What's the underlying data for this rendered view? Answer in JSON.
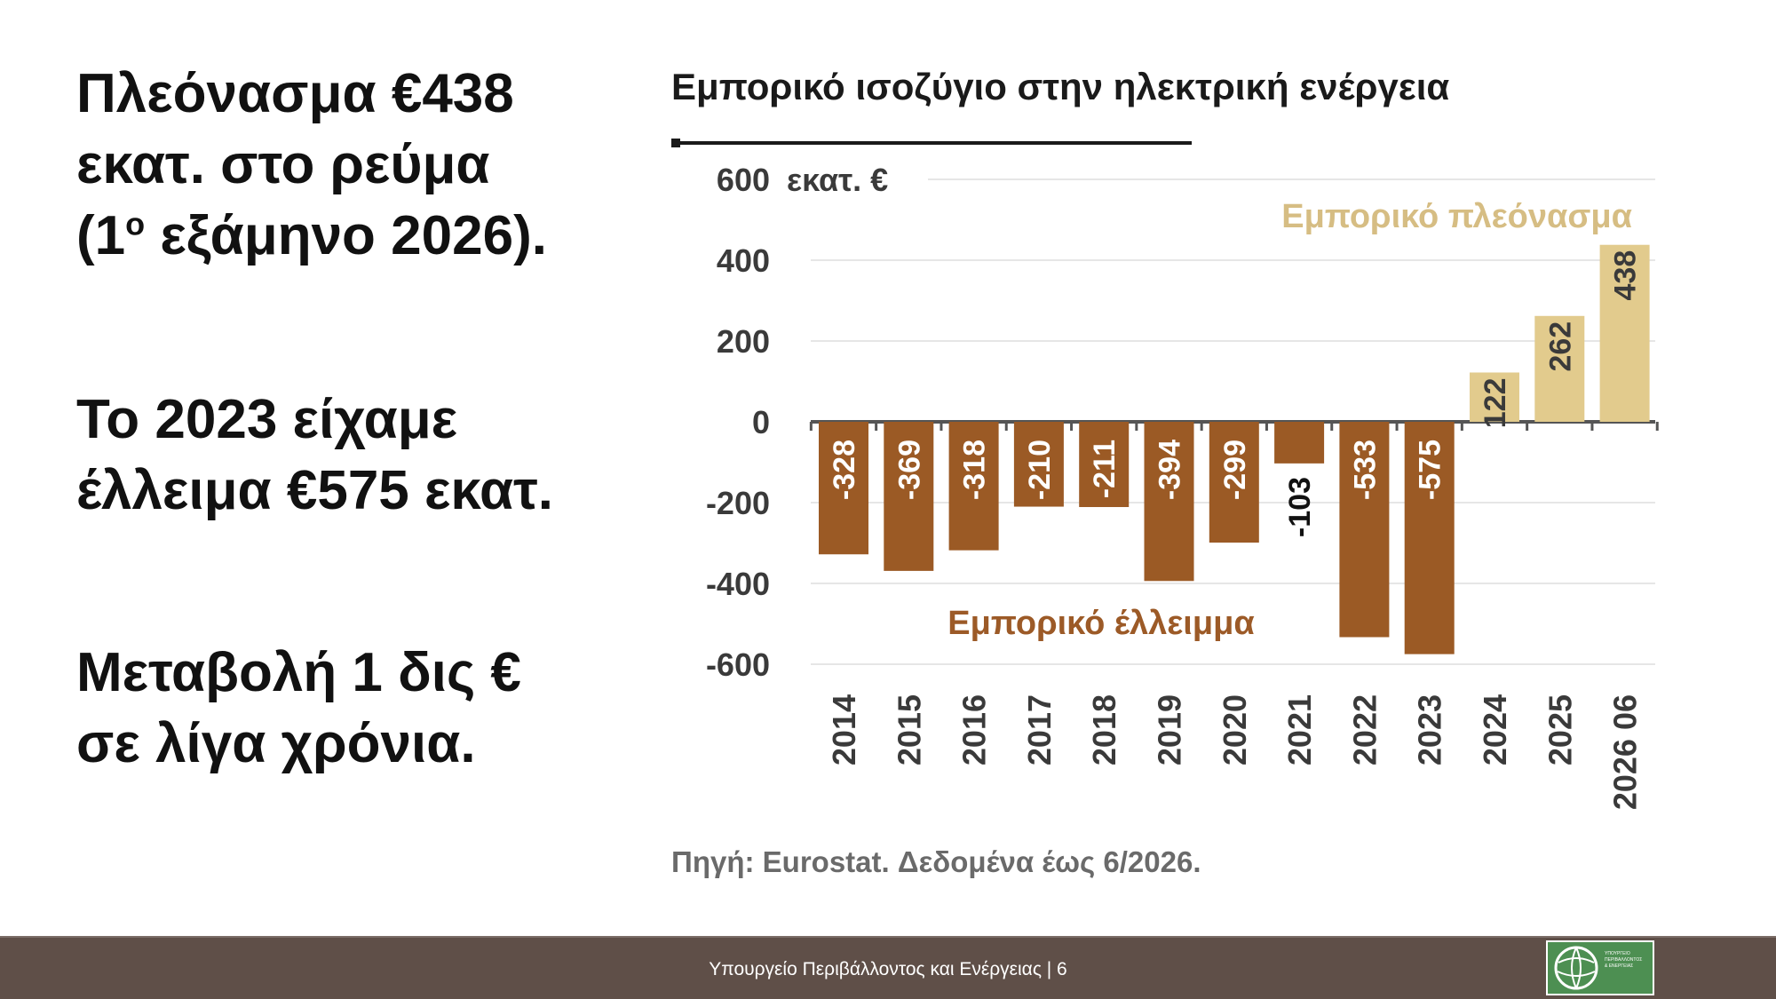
{
  "headline": {
    "block1_part1": "Πλεόνασμα €438",
    "block1_part2": "εκατ. στο ρεύμα",
    "block1_part3a": "(1",
    "block1_sup": "ο",
    "block1_part3b": " εξάμηνο 2026).",
    "block2_line1": "Το 2023 είχαμε",
    "block2_line2": "έλλειμα €575 εκατ.",
    "block3_line1": "Μεταβολή 1 δις €",
    "block3_line2": "σε λίγα χρόνια."
  },
  "chart_data": {
    "type": "bar",
    "title": "Εμπορικό ισοζύγιο στην ηλεκτρική ενέργεια",
    "unit_label": "εκατ. €",
    "categories": [
      "2014",
      "2015",
      "2016",
      "2017",
      "2018",
      "2019",
      "2020",
      "2021",
      "2022",
      "2023",
      "2024",
      "2025",
      "2026 06"
    ],
    "values": [
      -328,
      -369,
      -318,
      -210,
      -211,
      -394,
      -299,
      -103,
      -533,
      -575,
      122,
      262,
      438
    ],
    "yticks": [
      600,
      400,
      200,
      0,
      -200,
      -400,
      -600
    ],
    "ylim": [
      -600,
      600
    ],
    "annotation_surplus": "Εμπορικό πλεόνασμα",
    "annotation_deficit": "Εμπορικό έλλειμμα",
    "source": "Πηγή: Eurostat. Δεδομένα έως 6/2026.",
    "colors": {
      "deficit": "#9b5a25",
      "surplus": "#e2cb8d",
      "surplus_text": "#d6bd83",
      "deficit_text": "#9c5a27",
      "axis": "#555555",
      "grid": "#e6e6e6",
      "text": "#3a3a3a"
    }
  },
  "footer": {
    "text": "Υπουργείο Περιβάλλοντος και Ενέργειας | 6",
    "logo_text": "ΥΠΟΥΡΓΕΙΟ\nΠΕΡΙΒΑΛΛΟΝΤΟΣ\n& ΕΝΕΡΓΕΙΑΣ",
    "background": "#5f4f48"
  }
}
